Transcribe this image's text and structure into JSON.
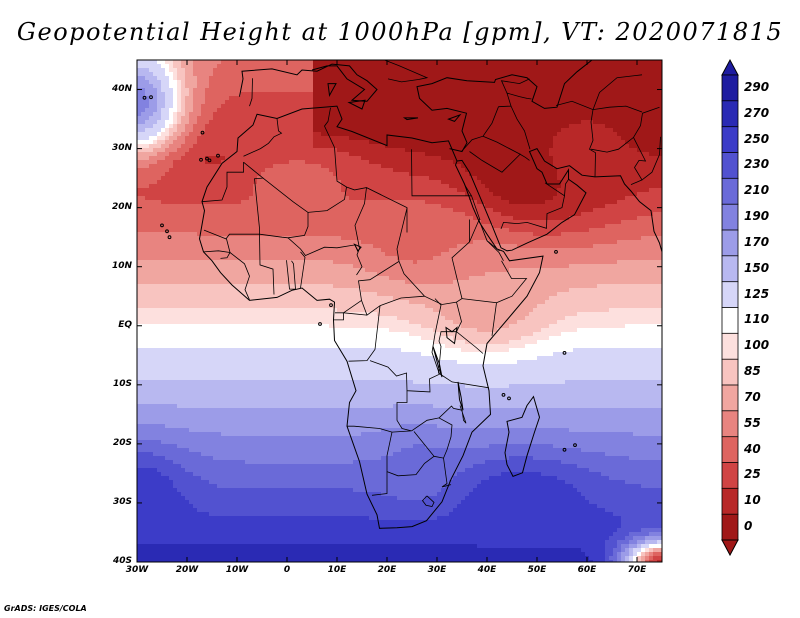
{
  "title": "Geopotential Height at 1000hPa [gpm], VT: 2020071815",
  "credit": "GrADS: IGES/COLA",
  "map": {
    "lon_range": [
      -30,
      75
    ],
    "lat_range": [
      -40,
      45
    ],
    "lat_labels": [
      {
        "lat": 40,
        "text": "40N"
      },
      {
        "lat": 30,
        "text": "30N"
      },
      {
        "lat": 20,
        "text": "20N"
      },
      {
        "lat": 10,
        "text": "10N"
      },
      {
        "lat": 0,
        "text": "EQ"
      },
      {
        "lat": -10,
        "text": "10S"
      },
      {
        "lat": -20,
        "text": "20S"
      },
      {
        "lat": -30,
        "text": "30S"
      },
      {
        "lat": -40,
        "text": "40S"
      }
    ],
    "lon_labels": [
      {
        "lon": -30,
        "text": "30W"
      },
      {
        "lon": -20,
        "text": "20W"
      },
      {
        "lon": -10,
        "text": "10W"
      },
      {
        "lon": 0,
        "text": "0"
      },
      {
        "lon": 10,
        "text": "10E"
      },
      {
        "lon": 20,
        "text": "20E"
      },
      {
        "lon": 30,
        "text": "30E"
      },
      {
        "lon": 40,
        "text": "40E"
      },
      {
        "lon": 50,
        "text": "50E"
      },
      {
        "lon": 60,
        "text": "60E"
      },
      {
        "lon": 70,
        "text": "70E"
      }
    ],
    "field_features": [
      {
        "name": "arabian-heat-low",
        "lon": 47,
        "lat": 25,
        "value": -5,
        "spread": [
          14,
          9
        ]
      },
      {
        "name": "persian-low",
        "lon": 60,
        "lat": 30,
        "value": 15,
        "spread": [
          12,
          10
        ]
      },
      {
        "name": "sahara-low",
        "lon": 2,
        "lat": 25,
        "value": 45,
        "spread": [
          16,
          7
        ]
      },
      {
        "name": "sudan-low",
        "lon": 28,
        "lat": 15,
        "value": 45,
        "spread": [
          12,
          8
        ]
      },
      {
        "name": "east-africa-trough",
        "lon": 40,
        "lat": 5,
        "value": 70,
        "spread": [
          12,
          9
        ]
      },
      {
        "name": "indian-ocean-ridge",
        "lon": 47,
        "lat": -29,
        "value": 265,
        "spread": [
          15,
          7
        ]
      },
      {
        "name": "st-helena-high",
        "lon": -30,
        "lat": -29,
        "value": 270,
        "spread": [
          10,
          8
        ]
      },
      {
        "name": "south-africa-high",
        "lon": 26,
        "lat": -24,
        "value": 215,
        "spread": [
          7,
          6
        ]
      },
      {
        "name": "azores-ridge",
        "lon": -30,
        "lat": 38,
        "value": 200,
        "spread": [
          9,
          9
        ]
      },
      {
        "name": "southwest-indian-low",
        "lon": 75,
        "lat": -40,
        "value": 20,
        "spread": [
          8,
          4
        ]
      }
    ]
  },
  "colorbar": {
    "labels": [
      "290",
      "270",
      "250",
      "230",
      "210",
      "190",
      "170",
      "150",
      "125",
      "110",
      "100",
      "85",
      "70",
      "55",
      "40",
      "25",
      "10",
      "0"
    ],
    "colors": [
      "#1e1ca0",
      "#2a2ab4",
      "#3c3cc8",
      "#5252d0",
      "#6a6ad8",
      "#8282e0",
      "#9c9ce8",
      "#b8b8f0",
      "#d6d6f8",
      "#ffffff",
      "#fde0de",
      "#f8c4c0",
      "#f0a6a0",
      "#e88480",
      "#de6460",
      "#d04444",
      "#b82828",
      "#a01818"
    ]
  }
}
